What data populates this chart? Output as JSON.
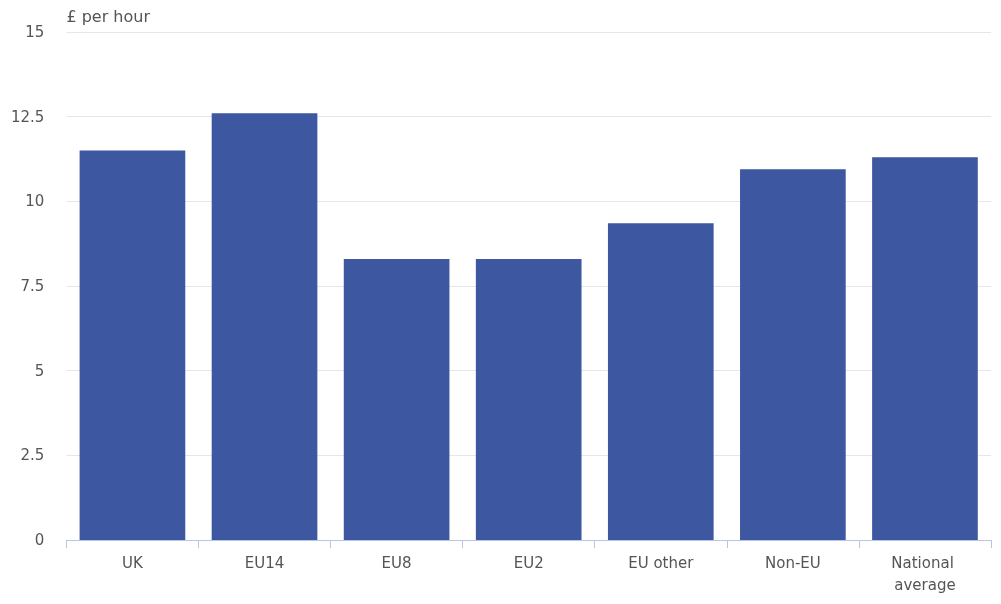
{
  "chart_data": {
    "type": "bar",
    "ylabel": "£ per hour",
    "categories": [
      "UK",
      "EU14",
      "EU8",
      "EU2",
      "EU other",
      "Non-EU",
      "National average"
    ],
    "values": [
      11.5,
      12.6,
      8.3,
      8.3,
      9.35,
      10.95,
      11.3
    ],
    "color": "#3d57a0",
    "ylim": [
      0,
      15
    ],
    "yticks": [
      0,
      2.5,
      5,
      7.5,
      10,
      12.5,
      15
    ],
    "grid": "y"
  }
}
